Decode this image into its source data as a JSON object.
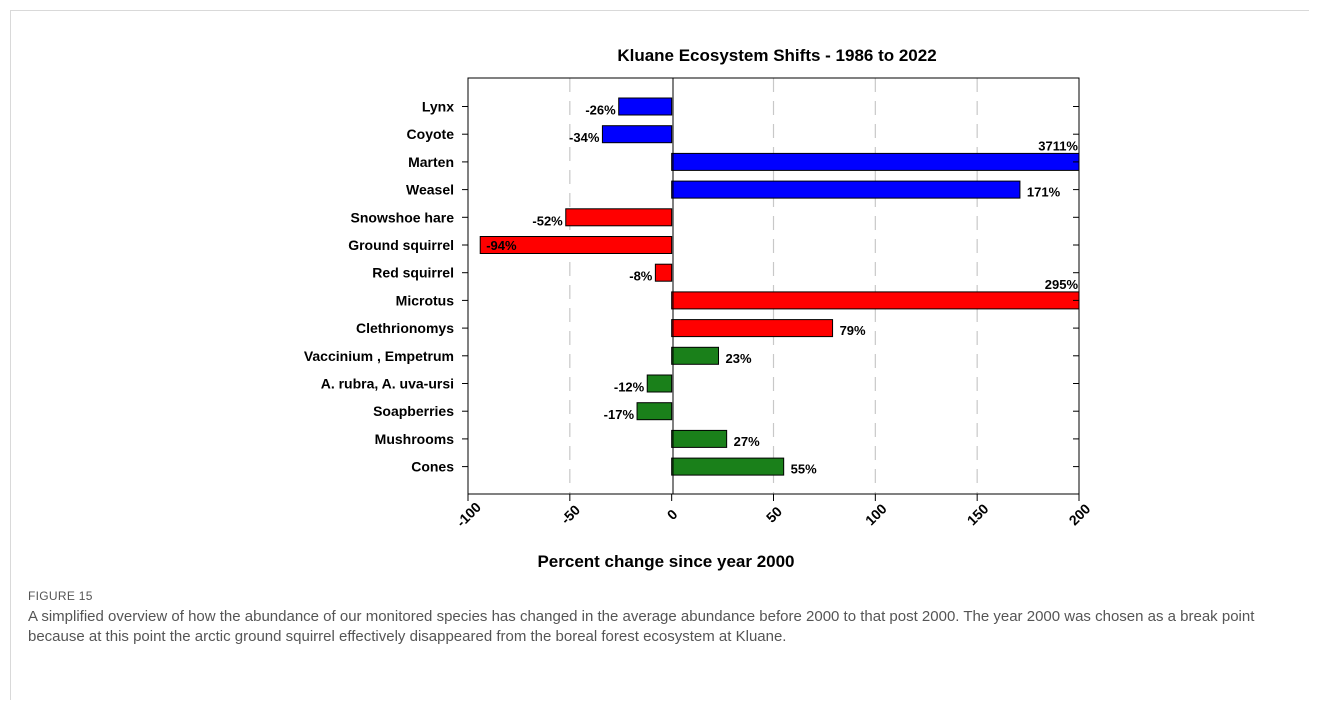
{
  "chart_data": {
    "type": "bar",
    "orientation": "horizontal",
    "title": "Kluane Ecosystem Shifts - 1986 to 2022",
    "xlabel": "Percent change since year 2000",
    "xlim": [
      -100,
      200
    ],
    "xticks": [
      -100,
      -50,
      0,
      50,
      100,
      150,
      200
    ],
    "xtick_labels": [
      "-100",
      "-50",
      "0",
      "50",
      "100",
      "150",
      "200"
    ],
    "grid": "vertical dashed",
    "categories": [
      "Lynx",
      "Coyote",
      "Marten",
      "Weasel",
      "Snowshoe hare",
      "Ground squirrel",
      "Red squirrel",
      "Microtus",
      "Clethrionomys",
      "Vaccinium , Empetrum ",
      "A. rubra, A. uva-ursi",
      "Soapberries",
      "Mushrooms",
      "Cones"
    ],
    "values": [
      -26,
      -34,
      3711,
      171,
      -52,
      -94,
      -8,
      295,
      79,
      23,
      -12,
      -17,
      27,
      55
    ],
    "value_labels": [
      "-26%",
      "-34%",
      "3711%",
      "171%",
      "-52%",
      "-94%",
      "-8%",
      "295%",
      "79%",
      "23%",
      "-12%",
      "-17%",
      "27%",
      "55%"
    ],
    "colors": [
      "#0000ff",
      "#0000ff",
      "#0000ff",
      "#0000ff",
      "#ff0000",
      "#ff0000",
      "#ff0000",
      "#ff0000",
      "#ff0000",
      "#1a801a",
      "#1a801a",
      "#1a801a",
      "#1a801a",
      "#1a801a"
    ]
  },
  "figure": {
    "label": "FIGURE 15",
    "caption": "A simplified overview of how the abundance of our monitored species has changed in the average abundance before 2000 to that post 2000. The year 2000 was chosen as a break point because at this point the arctic ground squirrel effectively disappeared from the boreal forest ecosystem at Kluane."
  }
}
